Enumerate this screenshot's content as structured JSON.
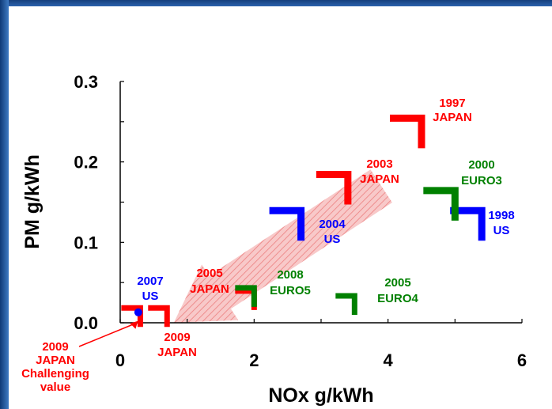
{
  "chart_data": {
    "type": "scatter",
    "title": "",
    "xlabel": "NOx  g/kWh",
    "ylabel": "PM  g/kWh",
    "xlim": [
      0,
      6
    ],
    "ylim": [
      0,
      0.3
    ],
    "x_ticks": [
      "0",
      "2",
      "4",
      "6"
    ],
    "y_ticks": [
      "0.0",
      "0.1",
      "0.2",
      "0.3"
    ],
    "grid": false,
    "legend": "none",
    "series": [
      {
        "color": "#ff0000",
        "points": [
          {
            "x": 4.5,
            "y": 0.25,
            "labels": [
              "1997",
              "JAPAN"
            ]
          },
          {
            "x": 3.4,
            "y": 0.18,
            "labels": [
              "2003",
              "JAPAN"
            ]
          },
          {
            "x": 2.0,
            "y": 0.036,
            "labels": [
              "2005",
              "JAPAN"
            ]
          },
          {
            "x": 0.7,
            "y": 0.015,
            "labels": [
              "2009",
              "JAPAN"
            ]
          },
          {
            "x": 0.3,
            "y": 0.015,
            "labels": [
              "2009",
              "JAPAN",
              "Challenging",
              "value"
            ]
          }
        ]
      },
      {
        "color": "#0000ff",
        "points": [
          {
            "x": 5.4,
            "y": 0.135,
            "labels": [
              "1998",
              "US"
            ]
          },
          {
            "x": 2.7,
            "y": 0.135,
            "labels": [
              "2004",
              "US"
            ]
          },
          {
            "x": 0.27,
            "y": 0.013,
            "labels": [
              "2007",
              "US"
            ]
          }
        ]
      },
      {
        "color": "#008000",
        "points": [
          {
            "x": 5.0,
            "y": 0.16,
            "labels": [
              "2000",
              "EURO3"
            ]
          },
          {
            "x": 3.5,
            "y": 0.03,
            "labels": [
              "2005",
              "EURO4"
            ]
          },
          {
            "x": 2.0,
            "y": 0.04,
            "labels": [
              "2008",
              "EURO5"
            ]
          }
        ]
      }
    ],
    "trend_arrow": {
      "color": "#f4a6a6",
      "from": {
        "x": 3.9,
        "y": 0.17
      },
      "to": {
        "x": 0.8,
        "y": 0.0
      }
    }
  }
}
